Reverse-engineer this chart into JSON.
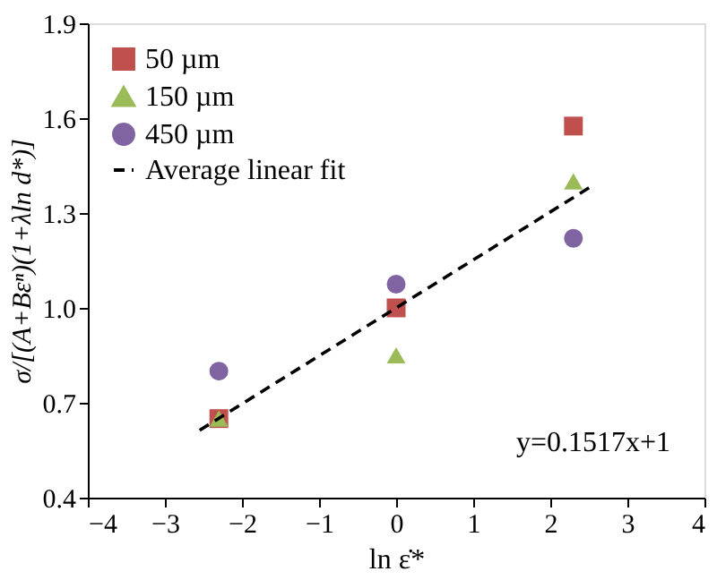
{
  "chart_data": {
    "type": "scatter",
    "xlabel": "ln ε̇*",
    "ylabel": "σ/[(A+Bεⁿ)(1+λln d*)]",
    "series": [
      {
        "name": "50 µm",
        "color": "#c0504d",
        "marker": "square",
        "x": [
          -2.3,
          0,
          2.3
        ],
        "values": [
          0.65,
          1.0,
          1.575
        ]
      },
      {
        "name": "150 µm",
        "color": "#9bbb59",
        "marker": "triangle",
        "x": [
          -2.3,
          0,
          2.3
        ],
        "values": [
          0.65,
          0.85,
          1.4
        ]
      },
      {
        "name": "450 µm",
        "color": "#8064a2",
        "marker": "circle",
        "x": [
          -2.3,
          0,
          2.3
        ],
        "values": [
          0.8,
          1.075,
          1.22
        ]
      },
      {
        "name": "Average linear fit",
        "type": "line",
        "color": "#000000",
        "line_style": "dashed",
        "marker": "none",
        "x": [
          -2.55,
          2.55
        ],
        "values": [
          0.613,
          1.387
        ]
      }
    ],
    "xlim": [
      -4,
      4
    ],
    "xticks": [
      -4,
      -3,
      -2,
      -1,
      0,
      1,
      2,
      3,
      4
    ],
    "ylim": [
      0.4,
      1.9
    ],
    "yticks": [
      0.4,
      0.7,
      {
        "value": 1,
        "label": "1.0"
      },
      1.3,
      1.6,
      1.9
    ],
    "annotations": [
      "y=0.1517x+1"
    ],
    "grid": false,
    "legend": "top left"
  }
}
